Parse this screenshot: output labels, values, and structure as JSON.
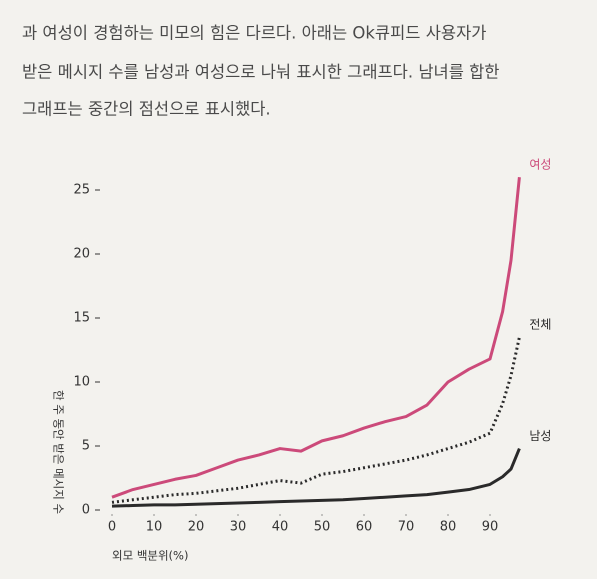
{
  "paragraph": [
    "과 여성이 경험하는 미모의 힘은 다르다. 아래는 Ok큐피드 사용자가",
    "받은 메시지 수를 남성과 여성으로 나눠 표시한 그래프다. 남녀를 합한",
    "그래프는 중간의 점선으로 표시했다."
  ],
  "chart_data": {
    "type": "line",
    "x_label": "외모 백분위(%)",
    "y_label": "한 주 동안 받은 메시지 수",
    "x": [
      0,
      5,
      10,
      15,
      20,
      25,
      30,
      35,
      40,
      45,
      50,
      55,
      60,
      65,
      70,
      75,
      80,
      85,
      90,
      93,
      95,
      97
    ],
    "series": [
      {
        "name": "여성",
        "color": "#cc4a7a",
        "style": "solid",
        "values": [
          1,
          1.6,
          2,
          2.4,
          2.7,
          3.3,
          3.9,
          4.3,
          4.8,
          4.6,
          5.4,
          5.8,
          6.4,
          6.9,
          7.3,
          8.2,
          10,
          11,
          11.8,
          15.5,
          19.5,
          26
        ]
      },
      {
        "name": "전체",
        "color": "#2a2a2a",
        "style": "dotted",
        "values": [
          0.6,
          0.8,
          1,
          1.2,
          1.3,
          1.5,
          1.7,
          2,
          2.3,
          2.1,
          2.8,
          3,
          3.3,
          3.6,
          3.9,
          4.3,
          4.8,
          5.3,
          6,
          8.3,
          10.5,
          13.5
        ]
      },
      {
        "name": "남성",
        "color": "#2a2a2a",
        "style": "solid",
        "values": [
          0.3,
          0.35,
          0.4,
          0.4,
          0.45,
          0.5,
          0.55,
          0.6,
          0.65,
          0.7,
          0.75,
          0.8,
          0.9,
          1,
          1.1,
          1.2,
          1.4,
          1.6,
          2,
          2.6,
          3.2,
          4.8
        ]
      }
    ],
    "xlim": [
      0,
      98
    ],
    "ylim": [
      0,
      26
    ],
    "xticks": [
      0,
      10,
      20,
      30,
      40,
      50,
      60,
      70,
      80,
      90
    ],
    "yticks": [
      0,
      5,
      10,
      15,
      20,
      25
    ]
  }
}
